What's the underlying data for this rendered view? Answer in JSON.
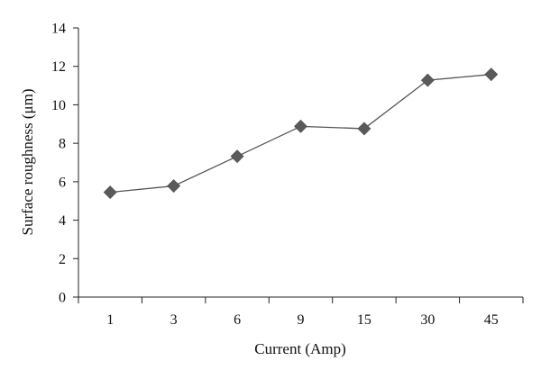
{
  "chart_data": {
    "type": "line",
    "categories": [
      "1",
      "3",
      "6",
      "9",
      "15",
      "30",
      "45"
    ],
    "series": [
      {
        "values": [
          5.45,
          5.78,
          7.32,
          8.88,
          8.76,
          11.28,
          11.58
        ]
      }
    ],
    "xlabel": "Current (Amp)",
    "ylabel": "Surface roughness (μm)",
    "ylim": [
      0,
      14
    ],
    "yticks": [
      0,
      2,
      4,
      6,
      8,
      10,
      12,
      14
    ],
    "grid": false,
    "marker": "diamond",
    "colors": {
      "line": "#555555",
      "marker": "#5a5a5a",
      "axis": "#222222"
    }
  }
}
